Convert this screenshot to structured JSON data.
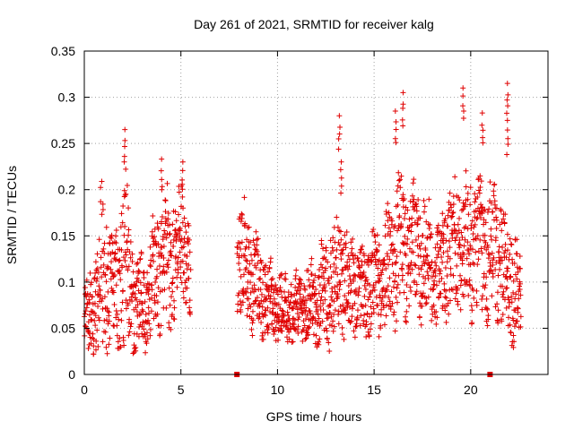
{
  "chart_data": {
    "type": "scatter",
    "title": "Day 261 of 2021, SRMTID for receiver kalg",
    "xlabel": "GPS time / hours",
    "ylabel": "SRMTID / TECUs",
    "xlim": [
      0,
      24
    ],
    "ylim": [
      0,
      0.35
    ],
    "xticks": [
      0,
      5,
      10,
      15,
      20
    ],
    "xtick_labels": [
      "0",
      "5",
      "10",
      "15",
      "20"
    ],
    "yticks": [
      0,
      0.05,
      0.1,
      0.15,
      0.2,
      0.25,
      0.3,
      0.35
    ],
    "ytick_labels": [
      "0",
      "0.05",
      "0.1",
      "0.15",
      "0.2",
      "0.25",
      "0.3",
      "0.35"
    ],
    "grid": true,
    "marker": "+",
    "color": "#e00000",
    "data_gap_hours": [
      5.5,
      7.9
    ],
    "gap_markers": [
      {
        "x": 7.9,
        "y": 0
      },
      {
        "x": 21.0,
        "y": 0
      }
    ],
    "series": [
      {
        "name": "SRMTID",
        "profile": [
          {
            "x": 0.0,
            "base": 0.06,
            "spread": 0.05
          },
          {
            "x": 0.5,
            "base": 0.07,
            "spread": 0.06
          },
          {
            "x": 0.9,
            "base": 0.11,
            "spread": 0.11
          },
          {
            "x": 1.4,
            "base": 0.09,
            "spread": 0.07
          },
          {
            "x": 2.1,
            "base": 0.12,
            "spread": 0.12
          },
          {
            "x": 2.6,
            "base": 0.07,
            "spread": 0.06
          },
          {
            "x": 3.2,
            "base": 0.08,
            "spread": 0.06
          },
          {
            "x": 3.8,
            "base": 0.12,
            "spread": 0.08
          },
          {
            "x": 4.4,
            "base": 0.12,
            "spread": 0.09
          },
          {
            "x": 5.0,
            "base": 0.15,
            "spread": 0.08
          },
          {
            "x": 5.5,
            "base": 0.1,
            "spread": 0.06
          },
          {
            "x": 7.9,
            "base": 0.13,
            "spread": 0.08
          },
          {
            "x": 8.6,
            "base": 0.11,
            "spread": 0.07
          },
          {
            "x": 9.5,
            "base": 0.08,
            "spread": 0.05
          },
          {
            "x": 10.5,
            "base": 0.07,
            "spread": 0.04
          },
          {
            "x": 11.5,
            "base": 0.07,
            "spread": 0.05
          },
          {
            "x": 12.5,
            "base": 0.09,
            "spread": 0.07
          },
          {
            "x": 13.3,
            "base": 0.11,
            "spread": 0.08
          },
          {
            "x": 14.3,
            "base": 0.09,
            "spread": 0.06
          },
          {
            "x": 15.3,
            "base": 0.1,
            "spread": 0.07
          },
          {
            "x": 16.3,
            "base": 0.14,
            "spread": 0.09
          },
          {
            "x": 17.3,
            "base": 0.13,
            "spread": 0.08
          },
          {
            "x": 18.3,
            "base": 0.11,
            "spread": 0.07
          },
          {
            "x": 19.3,
            "base": 0.14,
            "spread": 0.09
          },
          {
            "x": 20.3,
            "base": 0.14,
            "spread": 0.09
          },
          {
            "x": 21.3,
            "base": 0.13,
            "spread": 0.09
          },
          {
            "x": 22.3,
            "base": 0.09,
            "spread": 0.07
          },
          {
            "x": 22.6,
            "base": 0.08,
            "spread": 0.05
          }
        ],
        "segments": [
          [
            0.0,
            5.5
          ],
          [
            7.9,
            22.6
          ]
        ],
        "points_per_hour": 95,
        "peaks": [
          {
            "x": 2.1,
            "y": 0.265
          },
          {
            "x": 4.0,
            "y": 0.233
          },
          {
            "x": 5.1,
            "y": 0.23
          },
          {
            "x": 13.2,
            "y": 0.28
          },
          {
            "x": 13.3,
            "y": 0.23
          },
          {
            "x": 16.1,
            "y": 0.285
          },
          {
            "x": 16.5,
            "y": 0.305
          },
          {
            "x": 19.6,
            "y": 0.31
          },
          {
            "x": 20.6,
            "y": 0.283
          },
          {
            "x": 21.9,
            "y": 0.315
          },
          {
            "x": 21.9,
            "y": 0.275
          }
        ]
      }
    ]
  }
}
